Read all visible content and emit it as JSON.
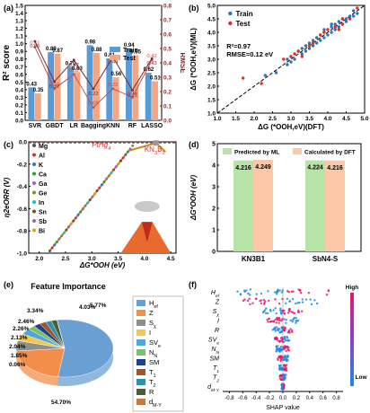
{
  "panels": {
    "a": "(a)",
    "b": "(b)",
    "c": "(c)",
    "d": "(d)",
    "e": "(e)",
    "f": "(f)"
  },
  "chart_data": [
    {
      "id": "a",
      "type": "bar",
      "categories": [
        "SVR",
        "GBDT",
        "LR",
        "Bagging",
        "KNN",
        "RF",
        "LASSO"
      ],
      "series": [
        {
          "name": "Train",
          "values": [
            0.43,
            0.89,
            0.7,
            0.98,
            0.81,
            0.94,
            0.62
          ],
          "color": "#5b9bd5"
        },
        {
          "name": "Test",
          "values": [
            0.35,
            0.87,
            0.63,
            0.88,
            0.56,
            0.85,
            0.51
          ],
          "color": "#f4a582"
        }
      ],
      "rmse_series": [
        {
          "name": "Train RMSE",
          "values": [
            0.51,
            0.22,
            0.32,
            0.09,
            0.22,
            0.16,
            0.42
          ],
          "color": "#c0504d"
        },
        {
          "name": "Test RMSE",
          "values": [
            0.55,
            0.27,
            0.42,
            0.22,
            0.44,
            0.21,
            0.43
          ],
          "color": "#7f2a2a"
        }
      ],
      "bar_labels": [
        "0.43",
        "0.35",
        "0.89",
        "0.87",
        "0.70",
        "0.63",
        "0.98",
        "0.88",
        "0.81",
        "0.56",
        "0.94",
        "0.85",
        "0.62",
        "0.51"
      ],
      "rmse_labels_top": [
        "0.51",
        "0.22",
        "0.32",
        "0.09",
        "0.22",
        "0.16",
        "0.42"
      ],
      "rmse_labels_bot": [
        "0.55",
        "0.27",
        "0.42",
        "0.22",
        "0.44",
        "0.21",
        "0.43"
      ],
      "ylabel": "R² score",
      "y2label": "RMSE",
      "ylim": [
        0,
        1.5
      ],
      "yticks": [
        "0.0",
        "0.1",
        "0.2",
        "0.3",
        "0.4",
        "0.5",
        "0.6",
        "0.7",
        "0.8",
        "0.9",
        "1.0",
        "1.1",
        "1.2",
        "1.3",
        "1.4",
        "1.5"
      ],
      "y2lim": [
        0,
        0.8
      ],
      "y2ticks": [
        "0.0",
        "0.1",
        "0.2",
        "0.3",
        "0.4",
        "0.5",
        "0.6",
        "0.7",
        "0.8"
      ],
      "legend": [
        "Train",
        "Test"
      ]
    },
    {
      "id": "b",
      "type": "scatter",
      "xlabel": "ΔG (*OOH,eV)(DFT)",
      "ylabel": "ΔG (*OOH,eV)(ML)",
      "xlim": [
        1.0,
        5.0
      ],
      "ylim": [
        1.0,
        5.0
      ],
      "xticks": [
        "1.0",
        "1.5",
        "2.0",
        "2.5",
        "3.0",
        "3.5",
        "4.0",
        "4.5",
        "5.0"
      ],
      "yticks": [
        "1.0",
        "1.5",
        "2.0",
        "2.5",
        "3.0",
        "3.5",
        "4.0",
        "4.5",
        "5.0"
      ],
      "annotations": [
        "R²=0.97",
        "RMSE=0.12 eV"
      ],
      "series": [
        {
          "name": "Train",
          "color": "#2e75b6",
          "points": [
            [
              2.3,
              2.4
            ],
            [
              2.6,
              2.5
            ],
            [
              2.9,
              3.0
            ],
            [
              3.0,
              3.1
            ],
            [
              3.1,
              3.0
            ],
            [
              3.2,
              3.3
            ],
            [
              3.3,
              3.2
            ],
            [
              3.3,
              3.4
            ],
            [
              3.4,
              3.5
            ],
            [
              3.5,
              3.4
            ],
            [
              3.5,
              3.6
            ],
            [
              3.6,
              3.5
            ],
            [
              3.6,
              3.7
            ],
            [
              3.7,
              3.6
            ],
            [
              3.7,
              3.8
            ],
            [
              3.8,
              3.7
            ],
            [
              3.8,
              3.9
            ],
            [
              3.9,
              3.8
            ],
            [
              3.9,
              4.0
            ],
            [
              4.0,
              3.9
            ],
            [
              4.0,
              4.1
            ],
            [
              4.1,
              4.0
            ],
            [
              4.1,
              4.2
            ],
            [
              4.2,
              4.1
            ],
            [
              4.2,
              4.3
            ],
            [
              4.3,
              4.2
            ],
            [
              4.3,
              4.4
            ],
            [
              4.4,
              4.3
            ],
            [
              4.4,
              4.5
            ],
            [
              4.5,
              4.4
            ],
            [
              4.5,
              4.5
            ],
            [
              4.6,
              4.6
            ],
            [
              4.7,
              4.6
            ],
            [
              4.7,
              4.8
            ],
            [
              4.8,
              4.7
            ],
            [
              2.9,
              2.8
            ],
            [
              3.0,
              2.9
            ],
            [
              3.4,
              3.3
            ],
            [
              3.9,
              4.1
            ],
            [
              4.1,
              4.3
            ]
          ]
        },
        {
          "name": "Test",
          "color": "#e0302c",
          "points": [
            [
              1.7,
              2.3
            ],
            [
              2.2,
              2.1
            ],
            [
              2.8,
              3.0
            ],
            [
              3.0,
              3.1
            ],
            [
              3.1,
              3.2
            ],
            [
              3.3,
              3.1
            ],
            [
              3.5,
              3.5
            ],
            [
              3.6,
              3.6
            ],
            [
              3.8,
              3.9
            ],
            [
              3.9,
              4.0
            ],
            [
              4.0,
              4.1
            ],
            [
              4.2,
              4.2
            ],
            [
              4.3,
              4.1
            ],
            [
              4.4,
              4.5
            ],
            [
              4.6,
              4.5
            ],
            [
              4.8,
              4.9
            ],
            [
              4.4,
              4.3
            ],
            [
              3.2,
              3.3
            ]
          ]
        }
      ]
    },
    {
      "id": "c",
      "type": "scatter",
      "xlabel": "ΔG*OOH (eV)",
      "ylabel": "η2eORR (V)",
      "xlim": [
        1.8,
        4.6
      ],
      "ylim": [
        -1.0,
        0.0
      ],
      "xticks": [
        "2.0",
        "2.5",
        "3.0",
        "3.5",
        "4.0",
        "4.5"
      ],
      "yticks": [
        "0.0",
        "-0.2",
        "-0.4",
        "-0.6",
        "-0.8",
        "-1.0"
      ],
      "annotations": [
        "PtHg4",
        "KN3B1"
      ],
      "legend": [
        {
          "name": "Mg",
          "color": "#555555",
          "marker": "square"
        },
        {
          "name": "Al",
          "color": "#e0302c",
          "marker": "circle"
        },
        {
          "name": "K",
          "color": "#2e75b6",
          "marker": "triangle"
        },
        {
          "name": "Ca",
          "color": "#2ca02c",
          "marker": "triangle-down"
        },
        {
          "name": "Ga",
          "color": "#9467bd",
          "marker": "triangle-left"
        },
        {
          "name": "Ge",
          "color": "#8c8c2c",
          "marker": "triangle-right"
        },
        {
          "name": "In",
          "color": "#17becf",
          "marker": "triangle-right"
        },
        {
          "name": "Sn",
          "color": "#7f4f24",
          "marker": "circle"
        },
        {
          "name": "Sb",
          "color": "#9467bd",
          "marker": "star"
        },
        {
          "name": "Bi",
          "color": "#d4a017",
          "marker": "circle"
        }
      ],
      "line_points": [
        [
          2.2,
          -0.98
        ],
        [
          2.5,
          -0.8
        ],
        [
          2.8,
          -0.62
        ],
        [
          3.1,
          -0.44
        ],
        [
          3.4,
          -0.26
        ],
        [
          3.7,
          -0.08
        ],
        [
          4.22,
          -0.01
        ],
        [
          4.4,
          -0.09
        ]
      ]
    },
    {
      "id": "d",
      "type": "bar",
      "categories": [
        "KN3B1",
        "SbN4-S"
      ],
      "series": [
        {
          "name": "Predicted by ML",
          "values": [
            4.216,
            4.224
          ],
          "color": "#b7e4a6"
        },
        {
          "name": "Calculated by DFT",
          "values": [
            4.249,
            4.216
          ],
          "color": "#fcc9a8"
        }
      ],
      "bar_labels": [
        "4.216",
        "4.249",
        "4.224",
        "4.216"
      ],
      "ylabel": "ΔG*OOH (eV)",
      "ylim": [
        0,
        5
      ],
      "yticks": [
        "0",
        "1",
        "2",
        "3",
        "4",
        "5"
      ],
      "legend": [
        "Predicted by ML",
        "Calculated by DFT"
      ]
    },
    {
      "id": "e",
      "type": "pie",
      "title": "Feature Importance",
      "slices": [
        {
          "label": "Hef",
          "value": 54.7,
          "text": "54.70%",
          "color": "#6a9fd4"
        },
        {
          "label": "Z",
          "value": 21.36,
          "text": "21.36%",
          "color": "#f28e4a"
        },
        {
          "label": "Sχ",
          "value": 5.77,
          "text": "5.77%",
          "color": "#8e8e8e"
        },
        {
          "label": "I",
          "value": 4.03,
          "text": "4.03%",
          "color": "#f2c94c"
        },
        {
          "label": "SVe",
          "value": 3.34,
          "text": "3.34%",
          "color": "#4fa8d8"
        },
        {
          "label": "NN",
          "value": 2.46,
          "text": "2.46%",
          "color": "#78c26a"
        },
        {
          "label": "SM",
          "value": 2.26,
          "text": "2.26%",
          "color": "#1f3f8f"
        },
        {
          "label": "T1",
          "value": 2.13,
          "text": "2.13%",
          "color": "#a5532a"
        },
        {
          "label": "T2",
          "value": 2.04,
          "text": "2.04%",
          "color": "#2e8fb0"
        },
        {
          "label": "R",
          "value": 1.85,
          "text": "1.85%",
          "color": "#4d5e2e"
        },
        {
          "label": "dM-Y",
          "value": 0.06,
          "text": "0.06%",
          "color": "#c97a3a"
        }
      ]
    },
    {
      "id": "f",
      "type": "scatter",
      "xlabel": "SHAP value",
      "xlim": [
        -0.9,
        0.9
      ],
      "xticks": [
        "-0.8",
        "-0.6",
        "-0.4",
        "-0.2",
        "0.0",
        "0.2",
        "0.4",
        "0.6",
        "0.8"
      ],
      "features": [
        "Hef",
        "Z",
        "Sχ",
        "I",
        "R",
        "SVe",
        "NN",
        "SM",
        "T1",
        "T2",
        "dM-Y"
      ],
      "colorbar": {
        "high": "High",
        "low": "Low"
      }
    }
  ]
}
